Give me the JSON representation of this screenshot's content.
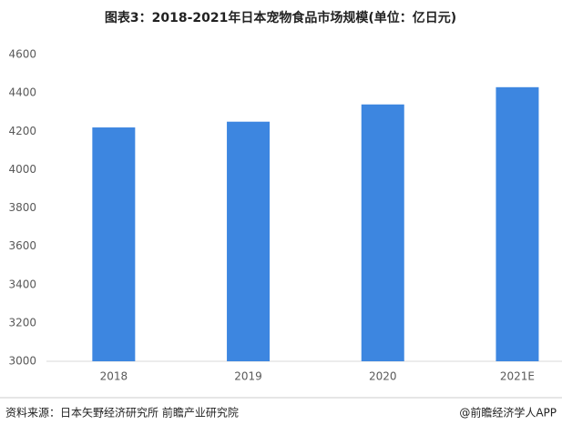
{
  "chart_data": {
    "type": "bar",
    "title": "图表3：2018-2021年日本宠物食品市场规模(单位：亿日元)",
    "categories": [
      "2018",
      "2019",
      "2020",
      "2021E"
    ],
    "values": [
      4220,
      4250,
      4340,
      4430
    ],
    "color": "#3d86e0",
    "ylim": [
      3000,
      4600
    ],
    "yticks": [
      3000,
      3200,
      3400,
      3600,
      3800,
      4000,
      4200,
      4400,
      4600
    ],
    "grid": false,
    "source": "资料来源：日本矢野经济研究所 前瞻产业研究院",
    "credit": "@前瞻经济学人APP"
  }
}
